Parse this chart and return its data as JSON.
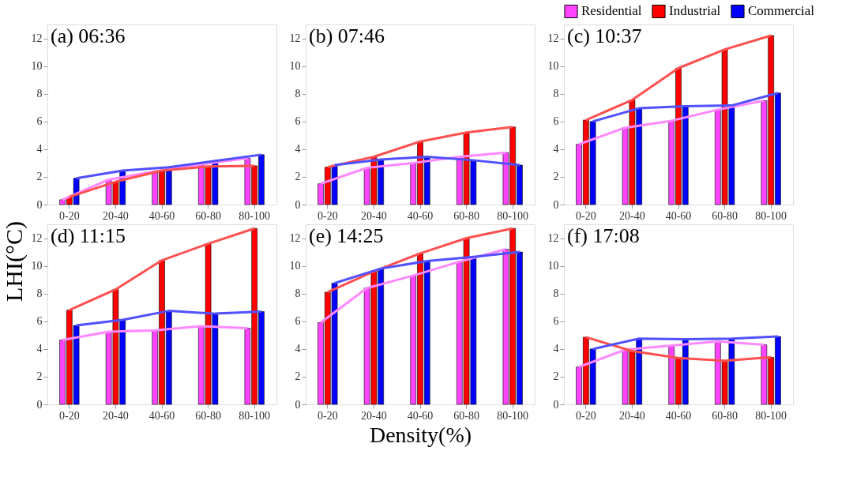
{
  "chart_data": [
    {
      "type": "bar",
      "title": "(a) 06:36",
      "categories": [
        "0-20",
        "20-40",
        "40-60",
        "60-80",
        "80-100"
      ],
      "ylim": [
        0,
        13
      ],
      "yticks": [
        0,
        2,
        4,
        6,
        8,
        10,
        12
      ],
      "ylabel": "LHI(°C)",
      "series": [
        {
          "color": "#ff44ff",
          "values": [
            0.35,
            1.8,
            2.4,
            2.9,
            3.35
          ]
        },
        {
          "color": "#ff0000",
          "values": [
            0.55,
            1.65,
            2.45,
            2.75,
            2.8
          ]
        },
        {
          "color": "#0000ff",
          "values": [
            1.9,
            2.45,
            2.7,
            3.15,
            3.6
          ]
        },
        {
          "type": "line",
          "color": "#ff88ff",
          "values": [
            0.35,
            1.8,
            2.4,
            2.9,
            3.35
          ]
        },
        {
          "type": "line",
          "color": "#ff5050",
          "values": [
            0.55,
            1.65,
            2.45,
            2.75,
            2.8
          ]
        },
        {
          "type": "line",
          "color": "#5050ff",
          "values": [
            1.9,
            2.45,
            2.7,
            3.15,
            3.6
          ]
        }
      ]
    },
    {
      "type": "bar",
      "title": "(b) 07:46",
      "categories": [
        "0-20",
        "20-40",
        "40-60",
        "60-80",
        "80-100"
      ],
      "ylim": [
        0,
        13
      ],
      "yticks": [
        0,
        2,
        4,
        6,
        8,
        10,
        12
      ],
      "series": [
        {
          "color": "#ff44ff",
          "values": [
            1.5,
            2.65,
            3.0,
            3.45,
            3.75
          ]
        },
        {
          "color": "#ff0000",
          "values": [
            2.7,
            3.45,
            4.55,
            5.2,
            5.6
          ]
        },
        {
          "color": "#0000ff",
          "values": [
            2.85,
            3.25,
            3.45,
            3.2,
            2.85
          ]
        },
        {
          "type": "line",
          "color": "#ff88ff",
          "values": [
            1.5,
            2.65,
            3.0,
            3.45,
            3.75
          ]
        },
        {
          "type": "line",
          "color": "#ff5050",
          "values": [
            2.7,
            3.45,
            4.55,
            5.2,
            5.6
          ]
        },
        {
          "type": "line",
          "color": "#5050ff",
          "values": [
            2.85,
            3.25,
            3.45,
            3.2,
            2.85
          ]
        }
      ]
    },
    {
      "type": "bar",
      "title": "(c) 10:37",
      "categories": [
        "0-20",
        "20-40",
        "40-60",
        "60-80",
        "80-100"
      ],
      "ylim": [
        0,
        13
      ],
      "yticks": [
        0,
        2,
        4,
        6,
        8,
        10,
        12
      ],
      "legend": "top right",
      "series": [
        {
          "name": "Residential",
          "color": "#ff44ff",
          "values": [
            4.35,
            5.55,
            6.05,
            6.85,
            7.5
          ]
        },
        {
          "name": "Industrial",
          "color": "#ff0000",
          "values": [
            6.1,
            7.55,
            9.85,
            11.2,
            12.2
          ]
        },
        {
          "name": "Commercial",
          "color": "#0000ff",
          "values": [
            6.0,
            6.95,
            7.1,
            7.15,
            8.05
          ]
        },
        {
          "type": "line",
          "color": "#ff88ff",
          "values": [
            4.35,
            5.55,
            6.05,
            6.85,
            7.5
          ]
        },
        {
          "type": "line",
          "color": "#ff5050",
          "values": [
            6.1,
            7.55,
            9.85,
            11.2,
            12.2
          ]
        },
        {
          "type": "line",
          "color": "#5050ff",
          "values": [
            6.0,
            6.95,
            7.1,
            7.15,
            8.05
          ]
        }
      ]
    },
    {
      "type": "bar",
      "title": "(d) 11:15",
      "categories": [
        "0-20",
        "20-40",
        "40-60",
        "60-80",
        "80-100"
      ],
      "ylim": [
        0,
        13
      ],
      "yticks": [
        0,
        2,
        4,
        6,
        8,
        10,
        12
      ],
      "series": [
        {
          "color": "#ff44ff",
          "values": [
            4.65,
            5.25,
            5.35,
            5.65,
            5.5
          ]
        },
        {
          "color": "#ff0000",
          "values": [
            6.8,
            8.3,
            10.4,
            11.6,
            12.7
          ]
        },
        {
          "color": "#0000ff",
          "values": [
            5.7,
            6.1,
            6.75,
            6.55,
            6.7
          ]
        },
        {
          "type": "line",
          "color": "#ff88ff",
          "values": [
            4.65,
            5.25,
            5.35,
            5.65,
            5.5
          ]
        },
        {
          "type": "line",
          "color": "#ff5050",
          "values": [
            6.8,
            8.3,
            10.4,
            11.6,
            12.7
          ]
        },
        {
          "type": "line",
          "color": "#5050ff",
          "values": [
            5.7,
            6.1,
            6.75,
            6.55,
            6.7
          ]
        }
      ]
    },
    {
      "type": "bar",
      "title": "(e) 14:25",
      "categories": [
        "0-20",
        "20-40",
        "40-60",
        "60-80",
        "80-100"
      ],
      "ylim": [
        0,
        13
      ],
      "yticks": [
        0,
        2,
        4,
        6,
        8,
        10,
        12
      ],
      "xlabel": "Density(%)",
      "series": [
        {
          "color": "#ff44ff",
          "values": [
            5.9,
            8.4,
            9.3,
            10.3,
            11.2
          ]
        },
        {
          "color": "#ff0000",
          "values": [
            8.1,
            9.6,
            10.9,
            12.0,
            12.7
          ]
        },
        {
          "color": "#0000ff",
          "values": [
            8.75,
            9.8,
            10.35,
            10.65,
            11.0
          ]
        },
        {
          "type": "line",
          "color": "#ff88ff",
          "values": [
            5.9,
            8.4,
            9.3,
            10.3,
            11.2
          ]
        },
        {
          "type": "line",
          "color": "#ff5050",
          "values": [
            8.1,
            9.6,
            10.9,
            12.0,
            12.7
          ]
        },
        {
          "type": "line",
          "color": "#5050ff",
          "values": [
            8.75,
            9.8,
            10.35,
            10.65,
            11.0
          ]
        }
      ]
    },
    {
      "type": "bar",
      "title": "(f) 17:08",
      "categories": [
        "0-20",
        "20-40",
        "40-60",
        "60-80",
        "80-100"
      ],
      "ylim": [
        0,
        13
      ],
      "yticks": [
        0,
        2,
        4,
        6,
        8,
        10,
        12
      ],
      "series": [
        {
          "color": "#ff44ff",
          "values": [
            2.7,
            3.95,
            4.25,
            4.55,
            4.3
          ]
        },
        {
          "color": "#ff0000",
          "values": [
            4.85,
            3.85,
            3.35,
            3.15,
            3.4
          ]
        },
        {
          "color": "#0000ff",
          "values": [
            4.0,
            4.75,
            4.7,
            4.75,
            4.9
          ]
        },
        {
          "type": "line",
          "color": "#ff88ff",
          "values": [
            2.7,
            3.95,
            4.25,
            4.55,
            4.3
          ]
        },
        {
          "type": "line",
          "color": "#ff5050",
          "values": [
            4.85,
            3.85,
            3.35,
            3.15,
            3.4
          ]
        },
        {
          "type": "line",
          "color": "#5050ff",
          "values": [
            4.0,
            4.75,
            4.7,
            4.75,
            4.9
          ]
        }
      ]
    }
  ]
}
